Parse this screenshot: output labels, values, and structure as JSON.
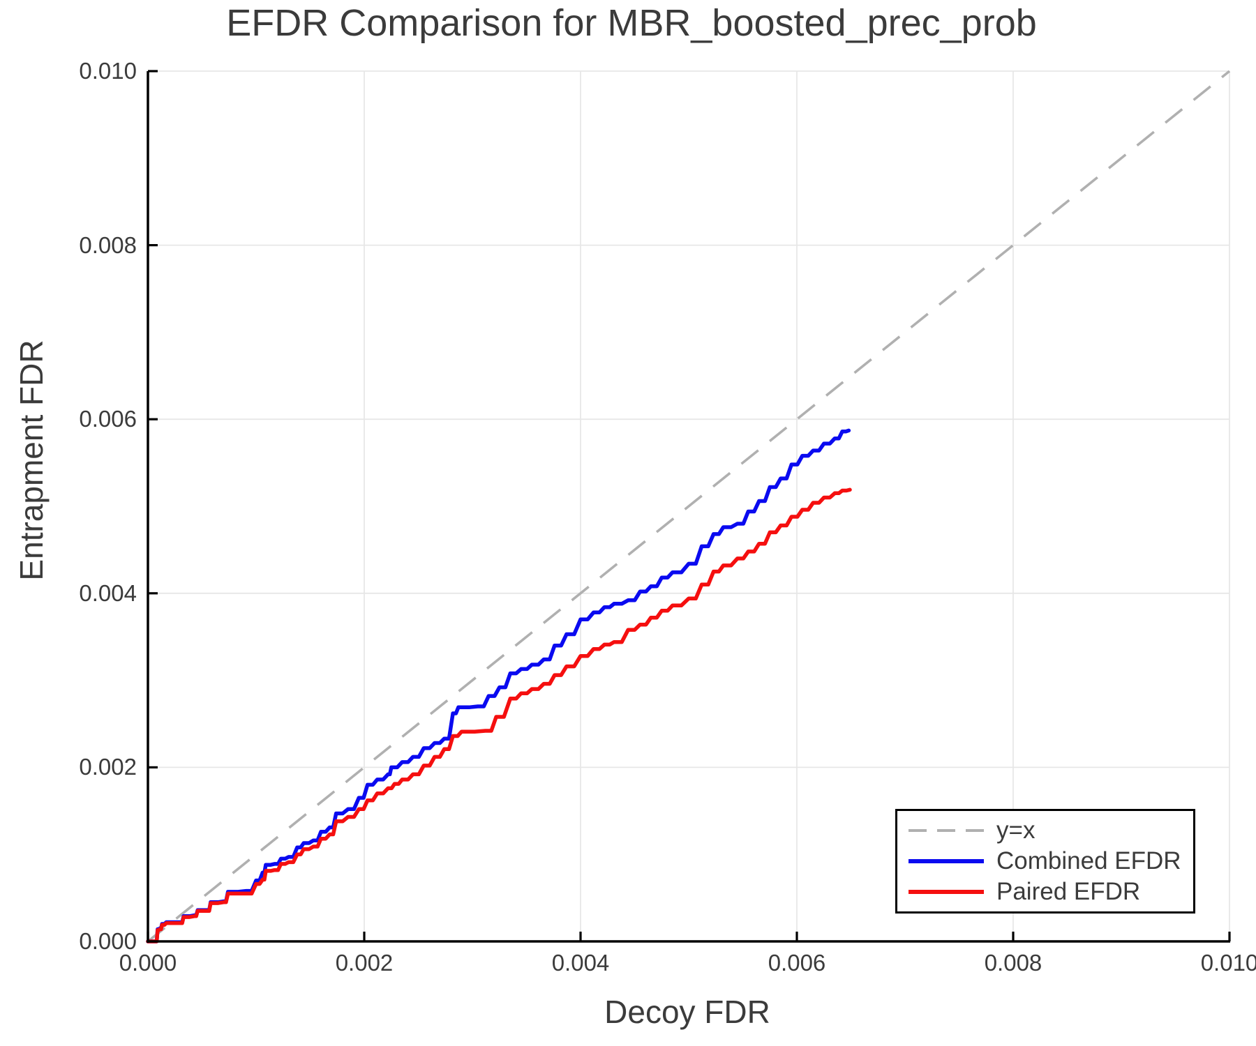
{
  "chart_data": {
    "type": "line",
    "title": "EFDR Comparison for MBR_boosted_prec_prob",
    "xlabel": "Decoy FDR",
    "ylabel": "Entrapment FDR",
    "xlim": [
      0.0,
      0.01
    ],
    "ylim": [
      0.0,
      0.01
    ],
    "grid": true,
    "legend_position": "bottom-right",
    "x_ticks": {
      "values": [
        0.0,
        0.002,
        0.004,
        0.006,
        0.008,
        0.01
      ],
      "labels": [
        "0.000",
        "0.002",
        "0.004",
        "0.006",
        "0.008",
        "0.010"
      ]
    },
    "y_ticks": {
      "values": [
        0.0,
        0.002,
        0.004,
        0.006,
        0.008,
        0.01
      ],
      "labels": [
        "0.000",
        "0.002",
        "0.004",
        "0.006",
        "0.008",
        "0.010"
      ]
    },
    "colors": {
      "identity": "#b0b0b0",
      "combined": "#0a0af0",
      "paired": "#f50f0f",
      "grid": "#e7e7e7",
      "axis": "#000000",
      "text": "#3b3b3b"
    },
    "series": [
      {
        "name": "y=x",
        "style": "dashed",
        "color_key": "identity",
        "points": [
          [
            0.0,
            0.0
          ],
          [
            0.01,
            0.01
          ]
        ]
      },
      {
        "name": "Combined EFDR",
        "style": "step",
        "color_key": "combined",
        "points": [
          [
            0.0,
            0.0
          ],
          [
            7e-05,
            0.0
          ],
          [
            9e-05,
            0.00014
          ],
          [
            0.00011,
            0.00015
          ],
          [
            0.00013,
            0.0002
          ],
          [
            0.00017,
            0.00022
          ],
          [
            0.0003,
            0.00022
          ],
          [
            0.00033,
            0.00029
          ],
          [
            0.00043,
            0.0003
          ],
          [
            0.00046,
            0.00036
          ],
          [
            0.00055,
            0.00036
          ],
          [
            0.00058,
            0.00045
          ],
          [
            0.0007,
            0.00046
          ],
          [
            0.00074,
            0.00057
          ],
          [
            0.00091,
            0.00058
          ],
          [
            0.001,
            0.0007
          ],
          [
            0.00106,
            0.00079
          ],
          [
            0.00109,
            0.00088
          ],
          [
            0.00117,
            0.00089
          ],
          [
            0.00123,
            0.00095
          ],
          [
            0.0013,
            0.00097
          ],
          [
            0.00138,
            0.00108
          ],
          [
            0.00144,
            0.00113
          ],
          [
            0.00153,
            0.00116
          ],
          [
            0.0016,
            0.00126
          ],
          [
            0.00168,
            0.00131
          ],
          [
            0.00174,
            0.00147
          ],
          [
            0.00185,
            0.00152
          ],
          [
            0.00195,
            0.00165
          ],
          [
            0.00203,
            0.0018
          ],
          [
            0.00212,
            0.00186
          ],
          [
            0.00222,
            0.00192
          ],
          [
            0.00225,
            0.002
          ],
          [
            0.00235,
            0.00206
          ],
          [
            0.00245,
            0.00212
          ],
          [
            0.00255,
            0.00222
          ],
          [
            0.00265,
            0.00228
          ],
          [
            0.00274,
            0.00233
          ],
          [
            0.00282,
            0.00262
          ],
          [
            0.00287,
            0.00269
          ],
          [
            0.00305,
            0.0027
          ],
          [
            0.00315,
            0.00282
          ],
          [
            0.00325,
            0.00292
          ],
          [
            0.00335,
            0.00308
          ],
          [
            0.00345,
            0.00313
          ],
          [
            0.00355,
            0.00318
          ],
          [
            0.00366,
            0.00324
          ],
          [
            0.00376,
            0.0034
          ],
          [
            0.00387,
            0.00353
          ],
          [
            0.004,
            0.0037
          ],
          [
            0.00412,
            0.00378
          ],
          [
            0.00422,
            0.00384
          ],
          [
            0.00431,
            0.00388
          ],
          [
            0.00444,
            0.00392
          ],
          [
            0.00455,
            0.00402
          ],
          [
            0.00465,
            0.00408
          ],
          [
            0.00475,
            0.00418
          ],
          [
            0.00485,
            0.00424
          ],
          [
            0.005,
            0.00434
          ],
          [
            0.00512,
            0.00454
          ],
          [
            0.00523,
            0.00468
          ],
          [
            0.00532,
            0.00476
          ],
          [
            0.00545,
            0.0048
          ],
          [
            0.00555,
            0.00494
          ],
          [
            0.00565,
            0.00506
          ],
          [
            0.00575,
            0.00522
          ],
          [
            0.00585,
            0.00532
          ],
          [
            0.00595,
            0.00548
          ],
          [
            0.00605,
            0.00558
          ],
          [
            0.00615,
            0.00564
          ],
          [
            0.00625,
            0.00572
          ],
          [
            0.00635,
            0.00578
          ],
          [
            0.00642,
            0.00586
          ],
          [
            0.00648,
            0.00587
          ]
        ]
      },
      {
        "name": "Paired EFDR",
        "style": "step",
        "color_key": "paired",
        "points": [
          [
            0.0,
            0.0
          ],
          [
            7e-05,
            0.0
          ],
          [
            9e-05,
            0.00013
          ],
          [
            0.00011,
            0.00014
          ],
          [
            0.00013,
            0.00019
          ],
          [
            0.00017,
            0.00021
          ],
          [
            0.0003,
            0.00021
          ],
          [
            0.00033,
            0.00028
          ],
          [
            0.00043,
            0.00029
          ],
          [
            0.00046,
            0.00035
          ],
          [
            0.00055,
            0.00035
          ],
          [
            0.00058,
            0.00044
          ],
          [
            0.0007,
            0.00045
          ],
          [
            0.00074,
            0.00055
          ],
          [
            0.00091,
            0.00055
          ],
          [
            0.001,
            0.00066
          ],
          [
            0.00106,
            0.00071
          ],
          [
            0.00109,
            0.00081
          ],
          [
            0.00117,
            0.00082
          ],
          [
            0.00123,
            0.00089
          ],
          [
            0.0013,
            0.00091
          ],
          [
            0.00138,
            0.001
          ],
          [
            0.00144,
            0.00106
          ],
          [
            0.00153,
            0.00109
          ],
          [
            0.0016,
            0.00118
          ],
          [
            0.00168,
            0.00123
          ],
          [
            0.00174,
            0.00138
          ],
          [
            0.00185,
            0.00143
          ],
          [
            0.00195,
            0.00152
          ],
          [
            0.00203,
            0.00162
          ],
          [
            0.00212,
            0.0017
          ],
          [
            0.00222,
            0.00176
          ],
          [
            0.00228,
            0.00181
          ],
          [
            0.00235,
            0.00186
          ],
          [
            0.00245,
            0.00192
          ],
          [
            0.00255,
            0.00202
          ],
          [
            0.00265,
            0.00212
          ],
          [
            0.00274,
            0.00221
          ],
          [
            0.00282,
            0.00236
          ],
          [
            0.0029,
            0.00241
          ],
          [
            0.00312,
            0.00242
          ],
          [
            0.00322,
            0.00258
          ],
          [
            0.00335,
            0.00279
          ],
          [
            0.00345,
            0.00285
          ],
          [
            0.00355,
            0.0029
          ],
          [
            0.00366,
            0.00296
          ],
          [
            0.00376,
            0.00306
          ],
          [
            0.00387,
            0.00316
          ],
          [
            0.004,
            0.00328
          ],
          [
            0.00412,
            0.00336
          ],
          [
            0.00422,
            0.00341
          ],
          [
            0.00431,
            0.00344
          ],
          [
            0.00444,
            0.00358
          ],
          [
            0.00455,
            0.00364
          ],
          [
            0.00465,
            0.00372
          ],
          [
            0.00475,
            0.0038
          ],
          [
            0.00485,
            0.00386
          ],
          [
            0.005,
            0.00394
          ],
          [
            0.00512,
            0.0041
          ],
          [
            0.00523,
            0.00425
          ],
          [
            0.00532,
            0.00432
          ],
          [
            0.00545,
            0.0044
          ],
          [
            0.00555,
            0.00448
          ],
          [
            0.00565,
            0.00457
          ],
          [
            0.00575,
            0.0047
          ],
          [
            0.00585,
            0.00478
          ],
          [
            0.00595,
            0.00488
          ],
          [
            0.00605,
            0.00496
          ],
          [
            0.00615,
            0.00504
          ],
          [
            0.00625,
            0.0051
          ],
          [
            0.00635,
            0.00515
          ],
          [
            0.00642,
            0.00518
          ],
          [
            0.00649,
            0.00519
          ]
        ]
      }
    ],
    "legend": {
      "items": [
        {
          "label": "y=x"
        },
        {
          "label": "Combined EFDR"
        },
        {
          "label": "Paired EFDR"
        }
      ]
    }
  }
}
